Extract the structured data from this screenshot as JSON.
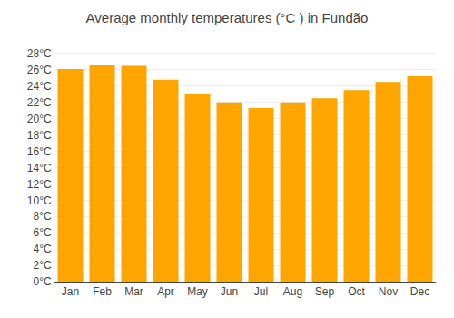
{
  "chart_data": {
    "type": "bar",
    "title": "Average monthly temperatures (°C ) in Fundão",
    "categories": [
      "Jan",
      "Feb",
      "Mar",
      "Apr",
      "May",
      "Jun",
      "Jul",
      "Aug",
      "Sep",
      "Oct",
      "Nov",
      "Dec"
    ],
    "values": [
      26.1,
      26.6,
      26.5,
      24.8,
      23.1,
      22.0,
      21.3,
      22.0,
      22.5,
      23.5,
      24.5,
      25.2
    ],
    "color": "#FFA500",
    "ylim": [
      0,
      29
    ],
    "yticks": [
      {
        "value": 0,
        "label": "0°C"
      },
      {
        "value": 2,
        "label": "2°C"
      },
      {
        "value": 4,
        "label": "4°C"
      },
      {
        "value": 6,
        "label": "6°C"
      },
      {
        "value": 8,
        "label": "8°C"
      },
      {
        "value": 10,
        "label": "10°C"
      },
      {
        "value": 12,
        "label": "12°C"
      },
      {
        "value": 14,
        "label": "14°C"
      },
      {
        "value": 16,
        "label": "16°C"
      },
      {
        "value": 18,
        "label": "18°C"
      },
      {
        "value": 20,
        "label": "20°C"
      },
      {
        "value": 22,
        "label": "22°C"
      },
      {
        "value": 24,
        "label": "24°C"
      },
      {
        "value": 26,
        "label": "26°C"
      },
      {
        "value": 28,
        "label": "28°C"
      }
    ],
    "grid": true
  }
}
